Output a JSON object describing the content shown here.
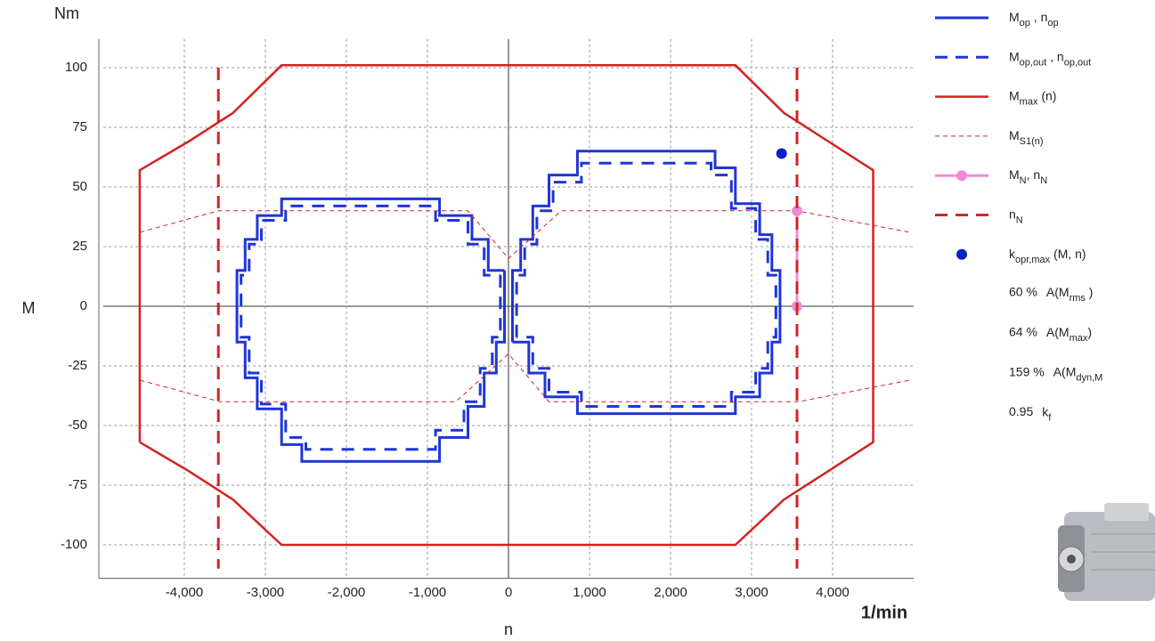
{
  "chart_data": {
    "type": "line",
    "ylabel_unit": "Nm",
    "ylabel": "M",
    "xlabel": "n",
    "xlabel_unit": "1/min",
    "xlim": [
      -5000,
      5000
    ],
    "ylim": [
      -114,
      112
    ],
    "xticks": [
      {
        "value": -4000,
        "label": "-4,000"
      },
      {
        "value": -3000,
        "label": "-3,000"
      },
      {
        "value": -2000,
        "label": "-2,000"
      },
      {
        "value": -1000,
        "label": "-1,000"
      },
      0,
      {
        "value": 1000,
        "label": "1,000"
      },
      {
        "value": 2000,
        "label": "2,000"
      },
      {
        "value": 3000,
        "label": "3,000"
      },
      {
        "value": 4000,
        "label": "4,000"
      }
    ],
    "yticks": [
      -100,
      -75,
      -50,
      -25,
      0,
      25,
      50,
      75,
      100
    ],
    "grid": true,
    "series": [
      {
        "name": [
          "M",
          "op",
          " , n",
          "op"
        ],
        "color": "#1f35d6",
        "style": "solid",
        "width": 3,
        "x": [
          50,
          50,
          150,
          150,
          300,
          300,
          500,
          500,
          850,
          850,
          2550,
          2550,
          2800,
          2800,
          3100,
          3100,
          3250,
          3250,
          3350,
          3350,
          3250,
          3250,
          3100,
          3100,
          2800,
          2800,
          850,
          850,
          450,
          450,
          250,
          250,
          50,
          null,
          -50,
          -50,
          -150,
          -150,
          -300,
          -300,
          -500,
          -500,
          -850,
          -850,
          -2550,
          -2550,
          -2800,
          -2800,
          -3100,
          -3100,
          -3250,
          -3250,
          -3350,
          -3350,
          -3250,
          -3250,
          -3100,
          -3100,
          -2800,
          -2800,
          -850,
          -850,
          -450,
          -450,
          -250,
          -250,
          -50
        ],
        "values": [
          -15,
          15,
          15,
          28,
          28,
          42,
          42,
          55,
          55,
          65,
          65,
          58,
          58,
          43,
          43,
          30,
          30,
          15,
          15,
          -15,
          -15,
          -28,
          -28,
          -38,
          -38,
          -45,
          -45,
          -38,
          -38,
          -28,
          -28,
          -15,
          -15,
          null,
          15,
          -15,
          -15,
          -28,
          -28,
          -42,
          -42,
          -55,
          -55,
          -65,
          -65,
          -58,
          -58,
          -43,
          -43,
          -30,
          -30,
          -15,
          -15,
          15,
          15,
          28,
          28,
          38,
          38,
          45,
          45,
          38,
          38,
          28,
          28,
          15,
          15
        ]
      },
      {
        "name": [
          "M",
          "op,out",
          " , n",
          "op,out"
        ],
        "color": "#1f35d6",
        "style": "dashed",
        "width": 3,
        "x": [
          100,
          100,
          200,
          200,
          350,
          350,
          550,
          550,
          900,
          900,
          2500,
          2500,
          2750,
          2750,
          3050,
          3050,
          3200,
          3200,
          3300,
          3300,
          3200,
          3200,
          3050,
          3050,
          2750,
          2750,
          900,
          900,
          500,
          500,
          300,
          300,
          100,
          null,
          -100,
          -100,
          -200,
          -200,
          -350,
          -350,
          -550,
          -550,
          -900,
          -900,
          -2500,
          -2500,
          -2750,
          -2750,
          -3050,
          -3050,
          -3200,
          -3200,
          -3300,
          -3300,
          -3200,
          -3200,
          -3050,
          -3050,
          -2750,
          -2750,
          -900,
          -900,
          -500,
          -500,
          -300,
          -300,
          -100
        ],
        "values": [
          -13,
          13,
          13,
          26,
          26,
          40,
          40,
          52,
          52,
          60,
          60,
          55,
          55,
          41,
          41,
          28,
          28,
          13,
          13,
          -13,
          -13,
          -26,
          -26,
          -36,
          -36,
          -42,
          -42,
          -36,
          -36,
          -26,
          -26,
          -13,
          -13,
          null,
          13,
          -13,
          -13,
          -26,
          -26,
          -40,
          -40,
          -52,
          -52,
          -60,
          -60,
          -55,
          -55,
          -41,
          -41,
          -28,
          -28,
          -13,
          -13,
          13,
          13,
          26,
          26,
          36,
          36,
          42,
          42,
          36,
          36,
          26,
          26,
          13,
          13
        ]
      },
      {
        "name": [
          "M",
          "max",
          " (n)"
        ],
        "color": "#d42222",
        "style": "solid",
        "width": 2.5,
        "x": [
          -4550,
          -4550,
          -3950,
          -3400,
          -2800,
          2800,
          3400,
          3950,
          4500,
          4500,
          3950,
          3400,
          2800,
          -2800,
          -3400,
          -3950,
          -4550
        ],
        "values": [
          -57,
          57,
          69,
          81,
          101,
          101,
          81,
          69,
          57,
          -57,
          -69,
          -81,
          -100,
          -100,
          -81,
          -69,
          -57
        ]
      },
      {
        "name": [
          "M",
          "S1(n)"
        ],
        "color": "#d42222",
        "style": "thin-dashed",
        "width": 1,
        "x": [
          -4545,
          -3580,
          -500,
          0,
          650,
          3560,
          4950,
          null,
          -4545,
          -3560,
          -650,
          0,
          500,
          3580,
          4950
        ],
        "values": [
          31,
          40,
          40,
          20,
          40,
          40,
          31,
          null,
          -31,
          -40,
          -40,
          -20,
          -40,
          -40,
          -31
        ]
      },
      {
        "name": [
          "M",
          "N",
          ", n",
          "N"
        ],
        "color": "#f08ad8",
        "style": "solid",
        "width": 3,
        "marker": true,
        "x": [
          3560,
          3560
        ],
        "values": [
          0,
          40
        ]
      },
      {
        "name": [
          "n",
          "N"
        ],
        "color": "#d42222",
        "style": "dashed",
        "width": 3,
        "x": [
          -3580,
          -3580,
          null,
          3560,
          3560
        ],
        "values": [
          100,
          -110,
          null,
          100,
          -110
        ]
      },
      {
        "name": [
          "k",
          "opr,max",
          "  (M, n)"
        ],
        "color": "#0a1fc8",
        "style": "none",
        "marker": true,
        "x": [
          3370
        ],
        "values": [
          64
        ]
      }
    ],
    "stats": [
      {
        "value": "60 %",
        "text": [
          "A(M",
          "rms",
          " )"
        ]
      },
      {
        "value": "64 %",
        "text": [
          "A(M",
          "max",
          ")"
        ]
      },
      {
        "value": "159 %",
        "text": [
          "A(M",
          "dyn,M"
        ]
      },
      {
        "value": "0.95",
        "text": [
          "k",
          "f"
        ]
      }
    ]
  }
}
